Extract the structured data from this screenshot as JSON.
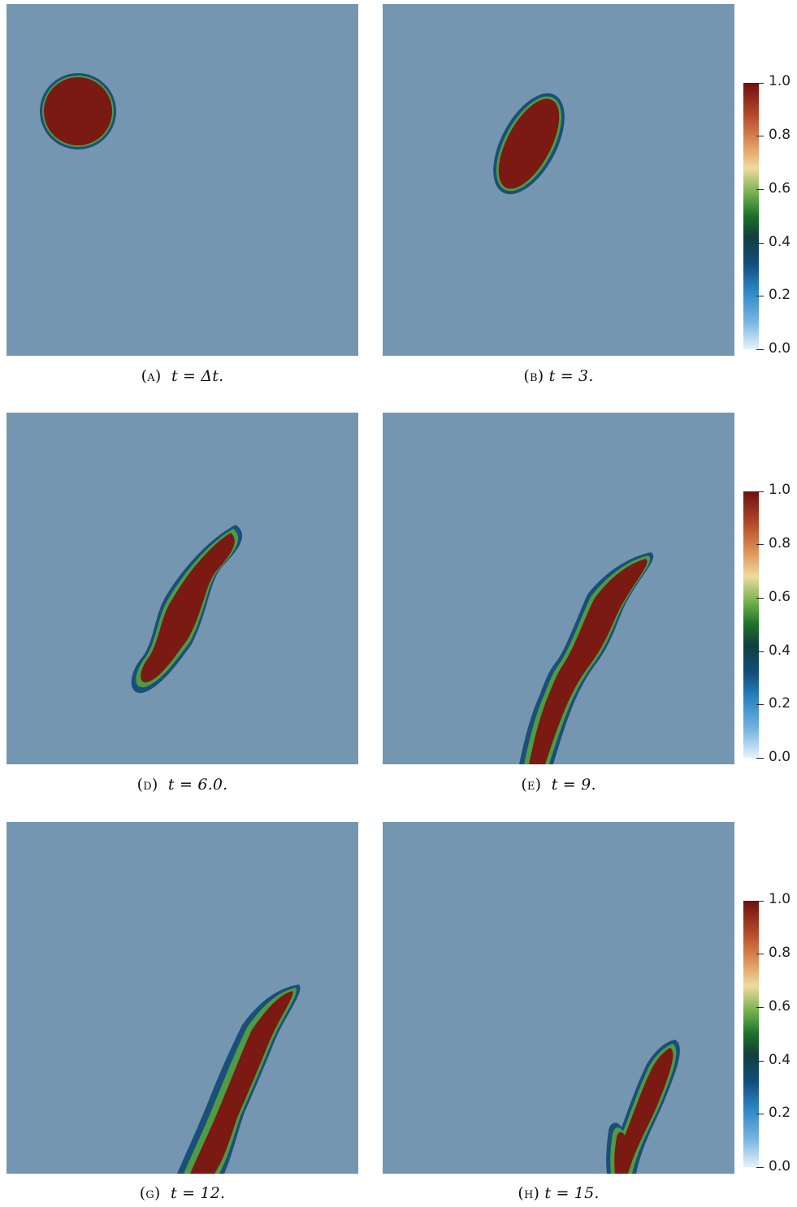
{
  "captions": [
    {
      "letter": "(a)",
      "text": "t = Δt."
    },
    {
      "letter": "(b)",
      "text": "t = 3."
    },
    {
      "letter": "(d)",
      "text": "t = 6.0."
    },
    {
      "letter": "(e)",
      "text": "t = 9."
    },
    {
      "letter": "(g)",
      "text": "t = 12."
    },
    {
      "letter": "(h)",
      "text": "t = 15."
    }
  ],
  "colorbar": {
    "ticks": [
      "1.0",
      "0.8",
      "0.6",
      "0.4",
      "0.2",
      "0.0"
    ],
    "colors": {
      "background": "#7596b0",
      "blob": "#7a1a12"
    }
  }
}
